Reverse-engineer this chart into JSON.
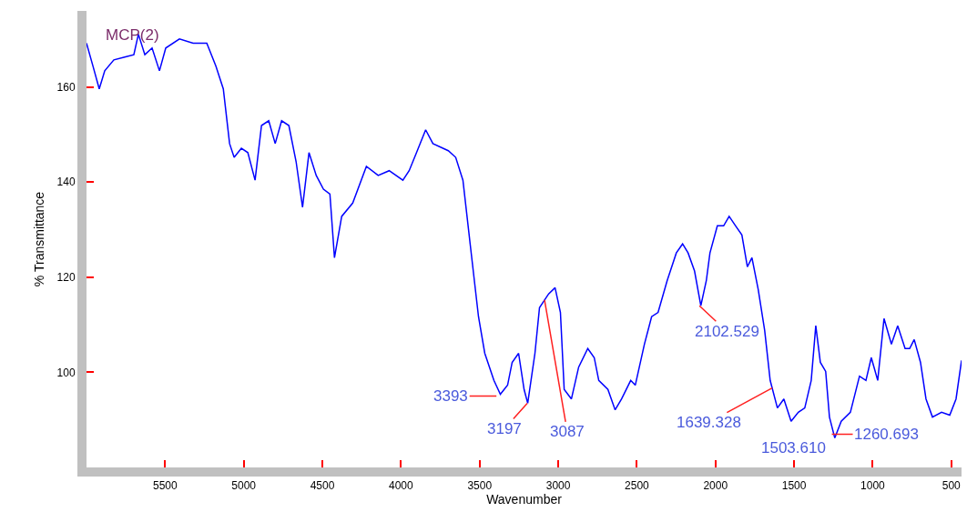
{
  "chart_data": {
    "type": "line",
    "xlabel": "Wavenumber",
    "ylabel": "% Transmittance",
    "x": [
      6000,
      5959,
      5919,
      5884,
      5826,
      5757,
      5699,
      5670,
      5629,
      5583,
      5536,
      5496,
      5409,
      5322,
      5235,
      5177,
      5130,
      5090,
      5061,
      5015,
      4974,
      4928,
      4887,
      4841,
      4800,
      4759,
      4713,
      4667,
      4626,
      4585,
      4539,
      4493,
      4452,
      4423,
      4377,
      4307,
      4220,
      4145,
      4075,
      3988,
      3948,
      3901,
      3843,
      3797,
      3699,
      3652,
      3606,
      3560,
      3507,
      3467,
      3409,
      3368,
      3322,
      3293,
      3252,
      3217,
      3194,
      3148,
      3119,
      3061,
      3020,
      2986,
      2962,
      2916,
      2870,
      2812,
      2771,
      2742,
      2684,
      2638,
      2597,
      2539,
      2510,
      2452,
      2406,
      2365,
      2307,
      2249,
      2209,
      2174,
      2133,
      2093,
      2058,
      2035,
      1988,
      1948,
      1913,
      1872,
      1832,
      1797,
      1768,
      1728,
      1687,
      1652,
      1606,
      1565,
      1519,
      1473,
      1432,
      1391,
      1362,
      1333,
      1299,
      1275,
      1241,
      1200,
      1142,
      1084,
      1043,
      1009,
      968,
      928,
      881,
      841,
      794,
      765,
      736,
      696,
      661,
      620,
      562,
      510,
      470,
      435
    ],
    "series": [
      {
        "color": "#0000ff",
        "values": [
          169.2,
          164.4,
          159.6,
          163.4,
          165.7,
          166.3,
          166.8,
          171.1,
          166.8,
          168.2,
          163.4,
          168.2,
          170.1,
          169.2,
          169.2,
          164.4,
          159.6,
          148.1,
          145.2,
          147.1,
          146.2,
          140.4,
          151.9,
          152.9,
          148.1,
          152.9,
          151.9,
          144.3,
          134.7,
          146.2,
          141.4,
          138.5,
          137.5,
          124.1,
          132.8,
          135.6,
          143.3,
          141.4,
          142.4,
          140.4,
          142.4,
          146.2,
          151.0,
          148.1,
          146.6,
          145.2,
          140.4,
          127.0,
          111.7,
          104.0,
          98.3,
          95.4,
          97.3,
          102.1,
          104.0,
          96.4,
          93.5,
          104.0,
          113.6,
          116.5,
          117.8,
          112.6,
          96.4,
          94.4,
          101.1,
          105.0,
          103.1,
          98.3,
          96.4,
          92.1,
          94.4,
          98.3,
          97.3,
          105.9,
          111.7,
          112.6,
          119.3,
          125.1,
          127.0,
          125.1,
          121.3,
          114.0,
          119.3,
          125.1,
          130.8,
          130.8,
          132.8,
          130.8,
          128.9,
          122.2,
          124.1,
          117.4,
          108.8,
          98.3,
          92.5,
          94.4,
          89.7,
          91.6,
          92.5,
          98.3,
          109.8,
          102.1,
          100.2,
          90.6,
          86.2,
          89.7,
          91.6,
          99.2,
          98.3,
          103.1,
          98.3,
          111.3,
          105.9,
          109.8,
          105.0,
          105.0,
          106.9,
          102.1,
          94.4,
          90.6,
          91.6,
          91.0,
          94.4,
          102.5
        ]
      }
    ],
    "xlim": [
      6000,
      435
    ],
    "ylim": [
      80,
      176
    ],
    "xticks": [
      5500,
      5000,
      4500,
      4000,
      3500,
      3000,
      2500,
      2000,
      1500,
      1000,
      500
    ],
    "yticks": [
      100,
      120,
      140,
      160
    ],
    "grid": false,
    "legend": false,
    "marker": "none",
    "line_style": "solid",
    "annotations": [
      "MCP(2)",
      {
        "text": "3393",
        "x": 3393,
        "y": 95
      },
      {
        "text": "3197",
        "x": 3197,
        "y": 93.5
      },
      {
        "text": "3087",
        "x": 3087,
        "y": 115.2
      },
      {
        "text": "2102.529",
        "x": 2102,
        "y": 114
      },
      {
        "text": "1639.328",
        "x": 1639,
        "y": 96.7
      },
      {
        "text": "1503.610",
        "x": 1503,
        "y": 89
      },
      {
        "text": "1260.693",
        "x": 1260,
        "y": 87
      }
    ]
  }
}
